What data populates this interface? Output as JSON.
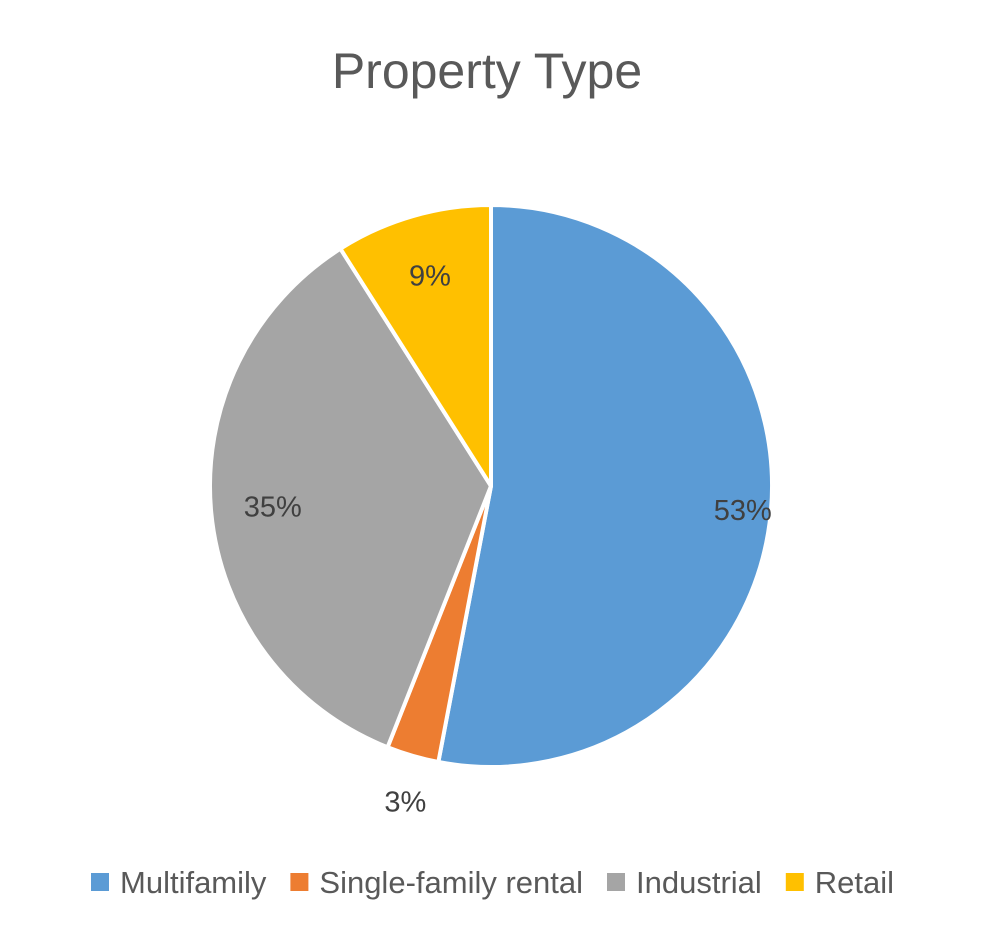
{
  "chart_data": {
    "type": "pie",
    "title": "Property Type",
    "slices": [
      {
        "label": "Multifamily",
        "value": 53,
        "display": "53%",
        "color": "#5B9BD5"
      },
      {
        "label": "Single-family rental",
        "value": 3,
        "display": "3%",
        "color": "#ED7D31"
      },
      {
        "label": "Industrial",
        "value": 35,
        "display": "35%",
        "color": "#A5A5A5"
      },
      {
        "label": "Retail",
        "value": 9,
        "display": "9%",
        "color": "#FFC000"
      }
    ],
    "legend_position": "bottom",
    "start_angle_deg": 0,
    "direction": "clockwise"
  }
}
